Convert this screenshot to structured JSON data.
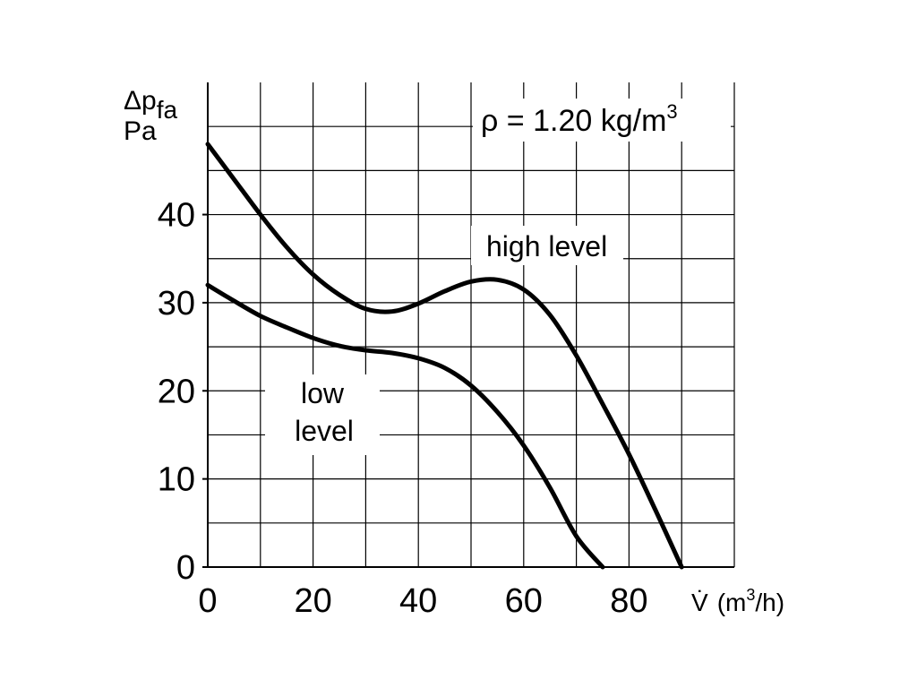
{
  "chart_data": {
    "type": "line",
    "ylabel_top": "Δp",
    "ylabel_sub": "fa",
    "yunit": "Pa",
    "xlabel_symbol": "V̇",
    "xunit_pre": "(m",
    "xunit_sup": "3",
    "xunit_post": "/h)",
    "annotation": {
      "pre": "ρ = 1.20 kg/m",
      "sup": "3"
    },
    "xlim": [
      0,
      100
    ],
    "ylim": [
      0,
      55
    ],
    "x_ticks": [
      0,
      20,
      40,
      60,
      80
    ],
    "y_ticks": [
      0,
      10,
      20,
      30,
      40
    ],
    "x_grid_step": 10,
    "y_grid_step": 5,
    "grid": true,
    "series": [
      {
        "name": "high level",
        "points": [
          [
            0,
            48
          ],
          [
            5,
            44
          ],
          [
            10,
            40
          ],
          [
            15,
            36.3
          ],
          [
            20,
            33.2
          ],
          [
            25,
            30.9
          ],
          [
            30,
            29.3
          ],
          [
            35,
            29.0
          ],
          [
            40,
            29.9
          ],
          [
            45,
            31.3
          ],
          [
            50,
            32.4
          ],
          [
            55,
            32.6
          ],
          [
            60,
            31.5
          ],
          [
            65,
            28.6
          ],
          [
            70,
            24.0
          ],
          [
            75,
            18.5
          ],
          [
            80,
            12.8
          ],
          [
            85,
            6.5
          ],
          [
            90,
            0
          ]
        ]
      },
      {
        "name": "low level",
        "points": [
          [
            0,
            32
          ],
          [
            5,
            30.2
          ],
          [
            10,
            28.5
          ],
          [
            15,
            27.2
          ],
          [
            20,
            26.0
          ],
          [
            25,
            25.1
          ],
          [
            30,
            24.6
          ],
          [
            35,
            24.3
          ],
          [
            40,
            23.7
          ],
          [
            45,
            22.6
          ],
          [
            50,
            20.6
          ],
          [
            55,
            17.6
          ],
          [
            60,
            13.8
          ],
          [
            65,
            9.0
          ],
          [
            70,
            3.5
          ],
          [
            75,
            0
          ]
        ]
      }
    ]
  }
}
